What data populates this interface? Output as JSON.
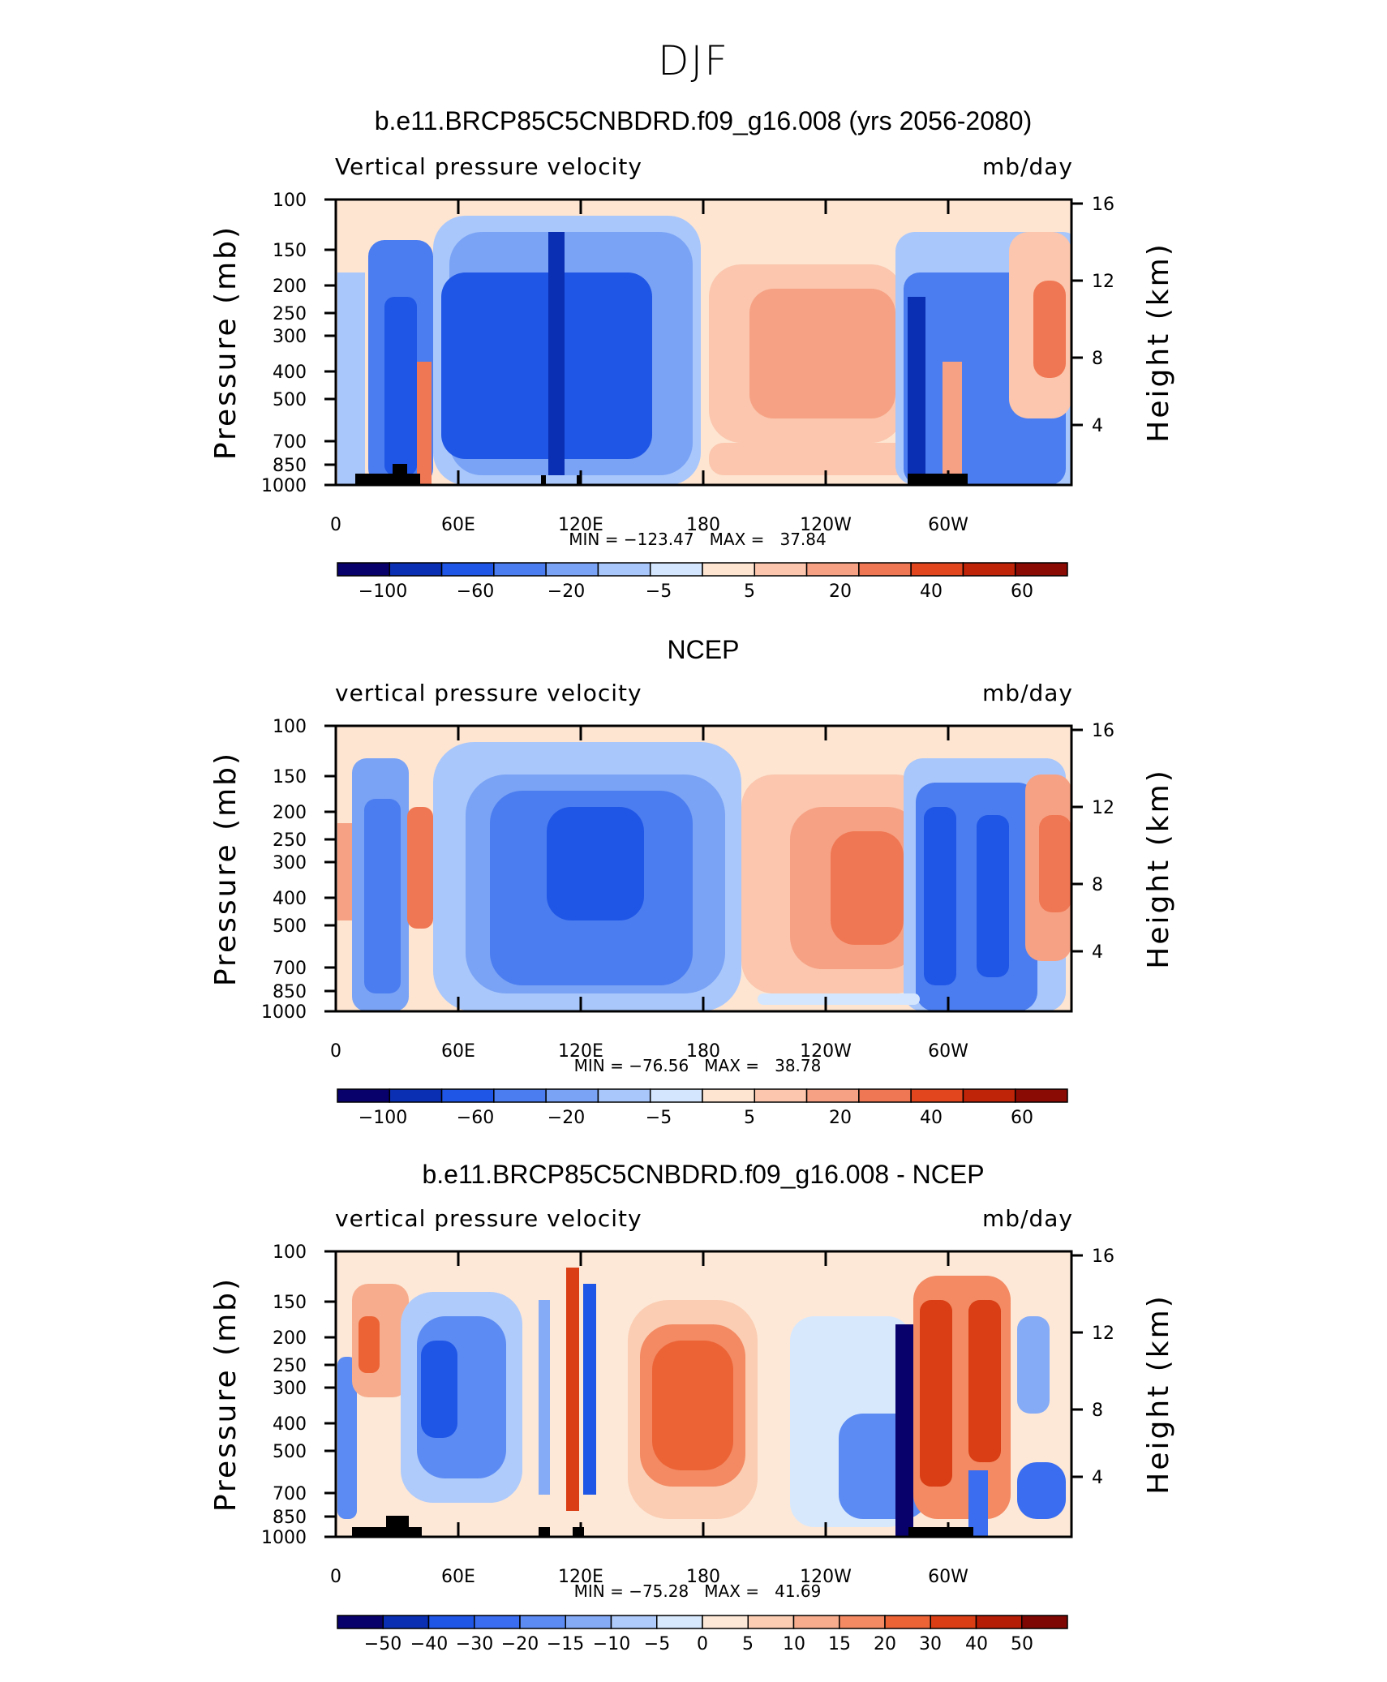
{
  "figure_title": "DJF",
  "colors": {
    "bar14": [
      "#08006b",
      "#0a2fb3",
      "#1f56e6",
      "#4b7df0",
      "#7aa3f5",
      "#a9c7fb",
      "#d4e6fd",
      "#fde5d2",
      "#fbc6ad",
      "#f6a184",
      "#f07753",
      "#e2461f",
      "#bf2308",
      "#8a0a04"
    ],
    "diff_bar16": [
      "#08006b",
      "#0a2fb3",
      "#1f56e6",
      "#3a6df0",
      "#5c8bf3",
      "#85abf7",
      "#afcbfb",
      "#d7e8fd",
      "#fde8d7",
      "#fbcdb3",
      "#f7ad8d",
      "#f38a63",
      "#ec6336",
      "#d93e14",
      "#b51d06",
      "#7f0703"
    ]
  },
  "chart_data": [
    {
      "type": "heatmap",
      "title": "b.e11.BRCP85C5CNBDRD.f09_g16.008 (yrs 2056-2080)",
      "left_label": "Vertical pressure velocity",
      "units": "mb/day",
      "ylabel": "Pressure (mb)",
      "y2label": "Height (km)",
      "x_ticks": [
        "0",
        "60E",
        "120E",
        "180",
        "120W",
        "60W"
      ],
      "y_ticks": [
        "100",
        "150",
        "200",
        "250",
        "300",
        "400",
        "500",
        "700",
        "850",
        "1000"
      ],
      "y2_ticks": [
        "16",
        "12",
        "8",
        "4"
      ],
      "stats": "MIN = −123.47   MAX =   37.84",
      "colorbar_labels": [
        "−100",
        "−60",
        "−20",
        "−5",
        "5",
        "20",
        "40",
        "60"
      ]
    },
    {
      "type": "heatmap",
      "title": "NCEP",
      "left_label": "vertical pressure velocity",
      "units": "mb/day",
      "ylabel": "Pressure (mb)",
      "y2label": "Height (km)",
      "x_ticks": [
        "0",
        "60E",
        "120E",
        "180",
        "120W",
        "60W"
      ],
      "y_ticks": [
        "100",
        "150",
        "200",
        "250",
        "300",
        "400",
        "500",
        "700",
        "850",
        "1000"
      ],
      "y2_ticks": [
        "16",
        "12",
        "8",
        "4"
      ],
      "stats": "MIN = −76.56   MAX =   38.78",
      "colorbar_labels": [
        "−100",
        "−60",
        "−20",
        "−5",
        "5",
        "20",
        "40",
        "60"
      ]
    },
    {
      "type": "heatmap",
      "title": "b.e11.BRCP85C5CNBDRD.f09_g16.008 - NCEP",
      "left_label": "vertical pressure velocity",
      "units": "mb/day",
      "ylabel": "Pressure (mb)",
      "y2label": "Height (km)",
      "x_ticks": [
        "0",
        "60E",
        "120E",
        "180",
        "120W",
        "60W"
      ],
      "y_ticks": [
        "100",
        "150",
        "200",
        "250",
        "300",
        "400",
        "500",
        "700",
        "850",
        "1000"
      ],
      "y2_ticks": [
        "16",
        "12",
        "8",
        "4"
      ],
      "stats": "MIN = −75.28   MAX =   41.69",
      "colorbar_labels": [
        "−50",
        "−40",
        "−30",
        "−20",
        "−15",
        "−10",
        "−5",
        "0",
        "5",
        "10",
        "15",
        "20",
        "30",
        "40",
        "50"
      ]
    }
  ]
}
